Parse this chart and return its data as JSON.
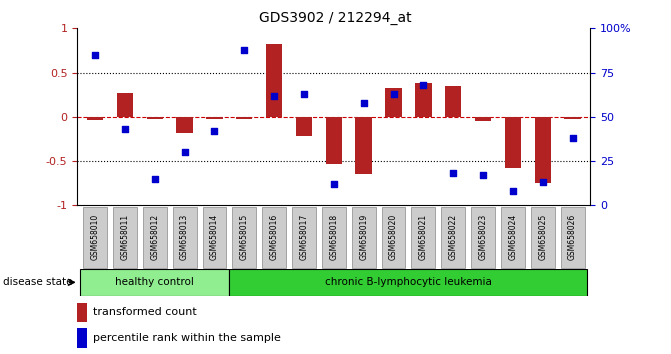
{
  "title": "GDS3902 / 212294_at",
  "samples": [
    "GSM658010",
    "GSM658011",
    "GSM658012",
    "GSM658013",
    "GSM658014",
    "GSM658015",
    "GSM658016",
    "GSM658017",
    "GSM658018",
    "GSM658019",
    "GSM658020",
    "GSM658021",
    "GSM658022",
    "GSM658023",
    "GSM658024",
    "GSM658025",
    "GSM658026"
  ],
  "bar_values": [
    -0.04,
    0.27,
    -0.03,
    -0.18,
    -0.02,
    -0.02,
    0.82,
    -0.22,
    -0.53,
    -0.65,
    0.33,
    0.38,
    0.35,
    -0.05,
    -0.58,
    -0.75,
    -0.03
  ],
  "dot_values": [
    85,
    43,
    15,
    30,
    42,
    88,
    62,
    63,
    12,
    58,
    63,
    68,
    18,
    17,
    8,
    13,
    38
  ],
  "healthy_count": 5,
  "bar_color": "#B22222",
  "dot_color": "#0000CC",
  "healthy_color": "#90EE90",
  "leukemia_color": "#32CD32",
  "background_color": "#FFFFFF",
  "zero_line_color": "#CC0000",
  "ylim": [
    -1,
    1
  ],
  "y2lim": [
    0,
    100
  ],
  "y_ticks": [
    -1,
    -0.5,
    0,
    0.5,
    1
  ],
  "y2_ticks": [
    0,
    25,
    50,
    75,
    100
  ],
  "legend_bar_label": "transformed count",
  "legend_dot_label": "percentile rank within the sample",
  "disease_state_label": "disease state",
  "healthy_label": "healthy control",
  "leukemia_label": "chronic B-lymphocytic leukemia",
  "label_box_color": "#CCCCCC",
  "label_box_edge": "#888888"
}
